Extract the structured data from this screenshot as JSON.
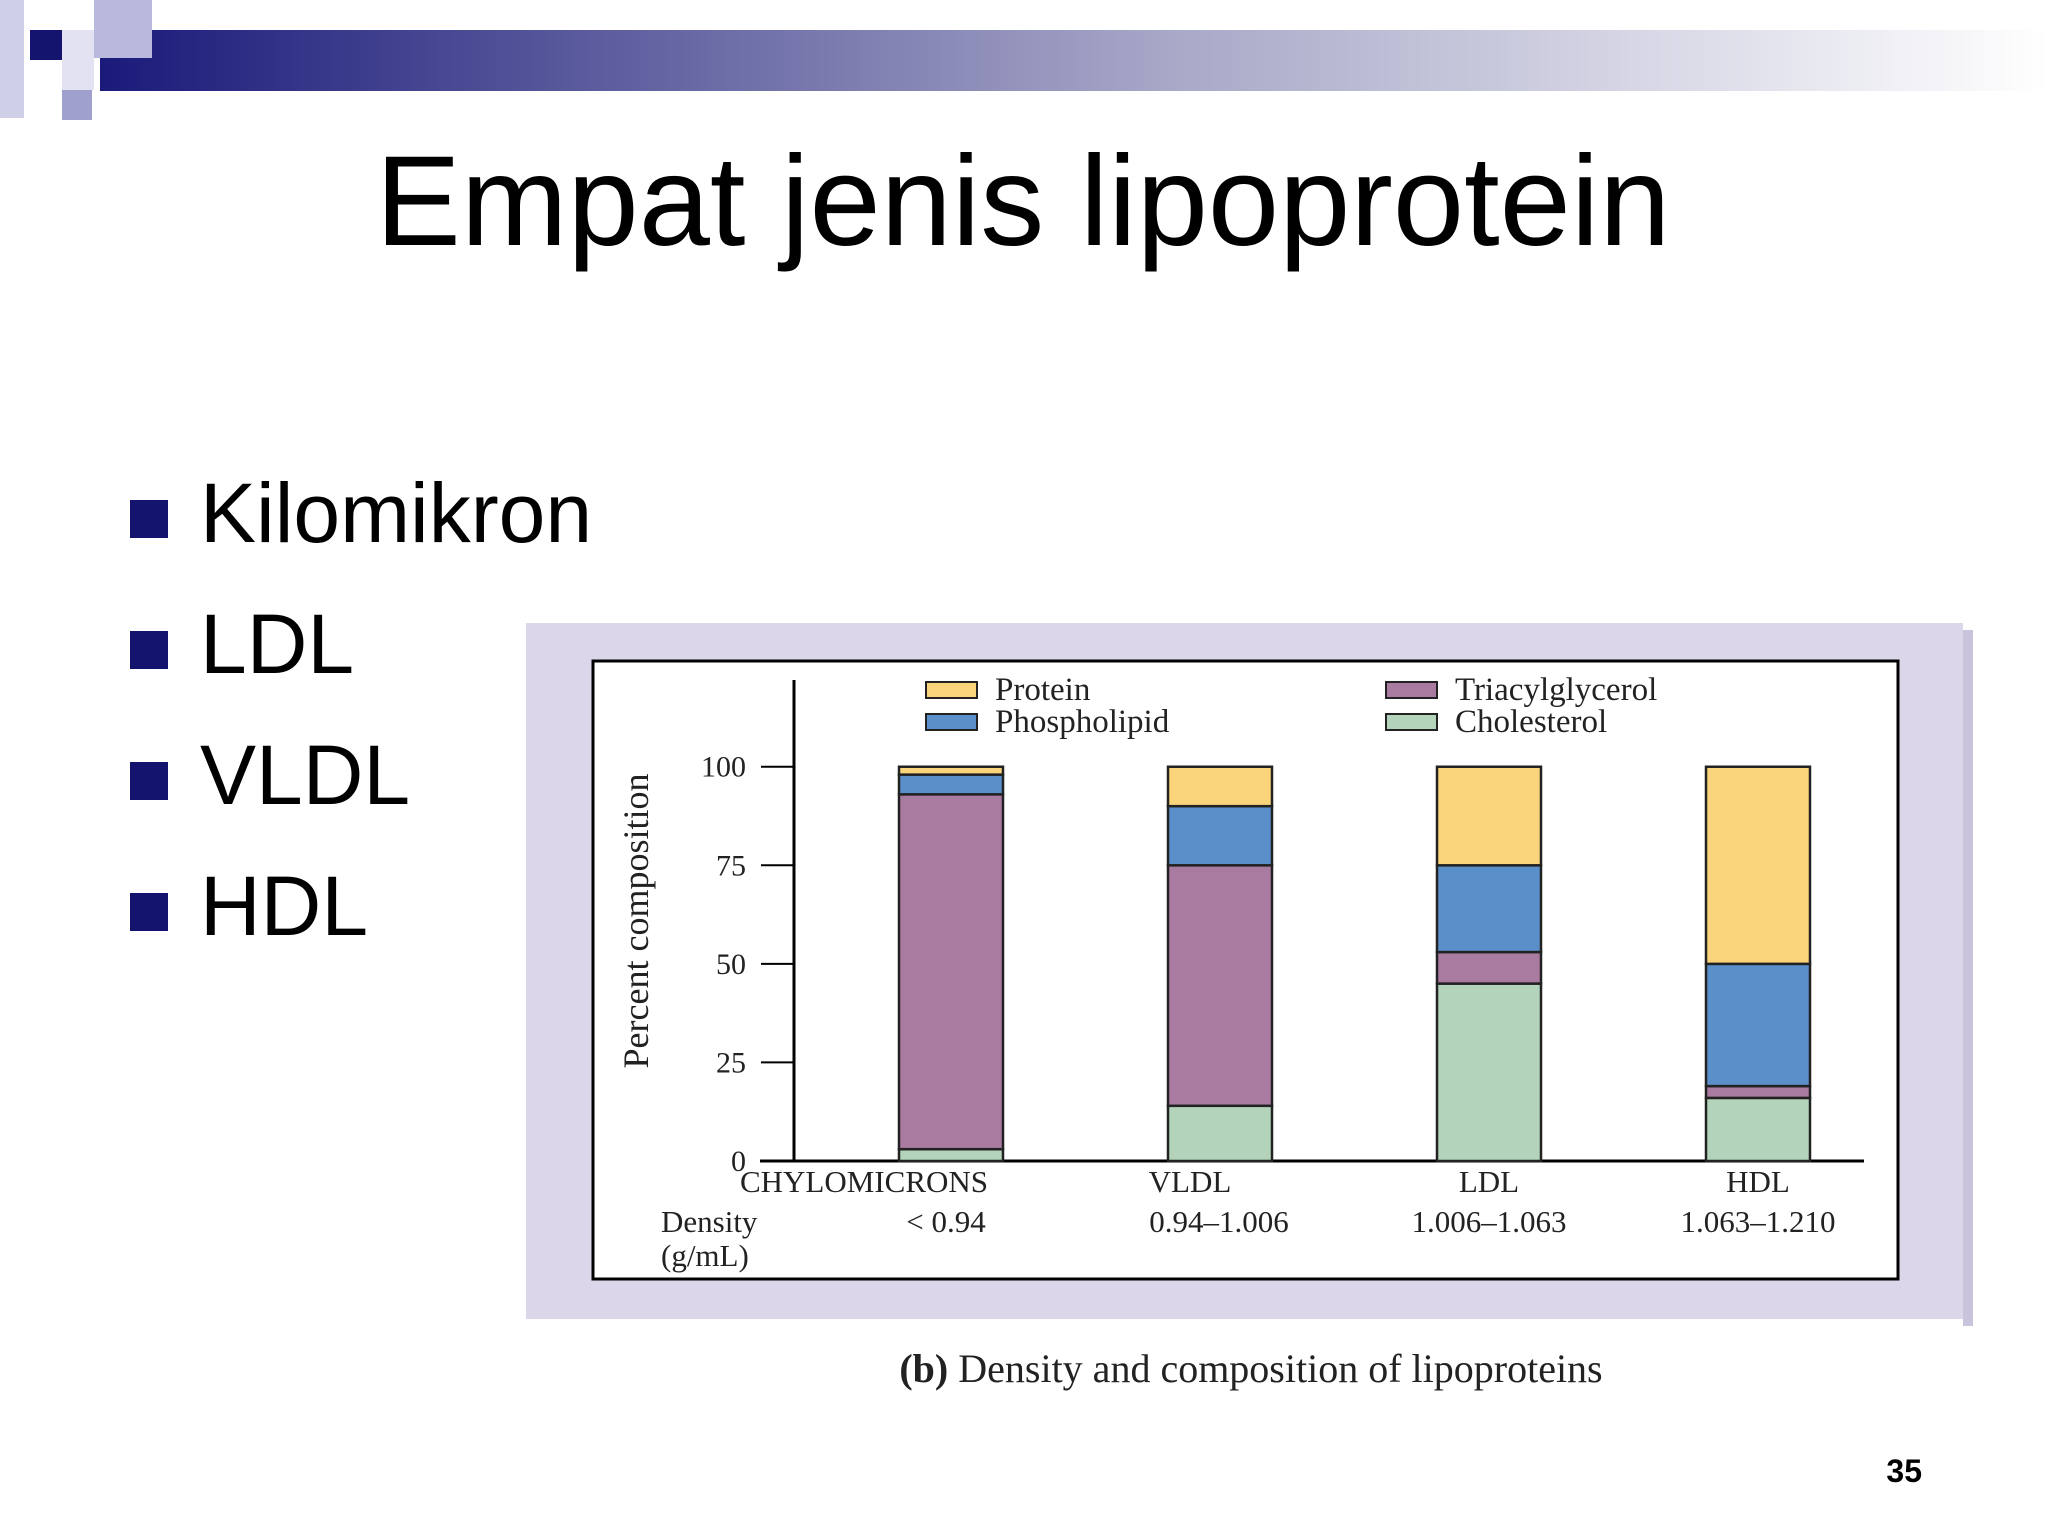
{
  "slide_title": "Empat jenis lipoprotein",
  "bullets": [
    "Kilomikron",
    "LDL",
    "VLDL",
    "HDL"
  ],
  "page_number": "35",
  "chart_data": {
    "type": "stacked_bar",
    "y_label": "Percent composition",
    "categories": [
      "CHYLOMICRONS",
      "VLDL",
      "LDL",
      "HDL"
    ],
    "density_label": [
      "Density",
      "(g/mL)"
    ],
    "density": [
      "< 0.94",
      "0.94–1.006",
      "1.006–1.063",
      "1.063–1.210"
    ],
    "series": [
      {
        "name": "Cholesterol",
        "color": "#b3d4bb",
        "values": [
          3,
          14,
          45,
          16
        ]
      },
      {
        "name": "Triacylglycerol",
        "color": "#a97ba1",
        "values": [
          90,
          61,
          8,
          3
        ]
      },
      {
        "name": "Phospholipid",
        "color": "#5b8fc9",
        "values": [
          5,
          15,
          22,
          31
        ]
      },
      {
        "name": "Protein",
        "color": "#f9d47a",
        "values": [
          2,
          10,
          25,
          50
        ]
      }
    ],
    "ylim": [
      0,
      122
    ],
    "yticks": [
      0,
      25,
      50,
      75,
      100
    ],
    "grid": false,
    "caption_tag": "(b)",
    "caption": "Density and composition of lipoproteins"
  }
}
